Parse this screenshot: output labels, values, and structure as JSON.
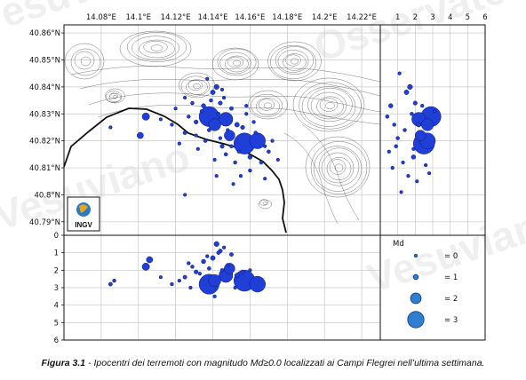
{
  "figure": {
    "caption_bold": "Figura 3.1",
    "caption_text": " - Ipocentri dei terremoti con magnitudo Md≥0.0 localizzati ai Campi Flegrei nell’ultima settimana.",
    "logo_text": "INGV",
    "watermark": [
      "Vesuviano",
      "Osservatorio",
      "INGV"
    ]
  },
  "colors": {
    "event": "#1f3fd6",
    "event_edge": "#0a1a7a",
    "legend_circle": "#2e7fd1",
    "grid": "#c8c8c8",
    "contour": "#333333"
  },
  "chart_data": [
    {
      "type": "scatter",
      "panel": "map",
      "x_ticks": [
        "14.08°E",
        "14.1°E",
        "14.12°E",
        "14.14°E",
        "14.16°E",
        "14.18°E",
        "14.2°E",
        "14.22°E"
      ],
      "y_ticks": [
        "40.86°N",
        "40.85°N",
        "40.84°N",
        "40.83°N",
        "40.82°N",
        "40.81°N",
        "40.8°N",
        "40.79°N"
      ],
      "xlim": [
        14.06,
        14.23
      ],
      "ylim": [
        40.785,
        40.863
      ],
      "points": [
        {
          "lon": 14.138,
          "lat": 40.829,
          "md": 3.0
        },
        {
          "lon": 14.157,
          "lat": 40.819,
          "md": 3.1
        },
        {
          "lon": 14.164,
          "lat": 40.82,
          "md": 2.6
        },
        {
          "lon": 14.147,
          "lat": 40.828,
          "md": 2.4
        },
        {
          "lon": 14.141,
          "lat": 40.826,
          "md": 2.2
        },
        {
          "lon": 14.149,
          "lat": 40.822,
          "md": 2.0
        },
        {
          "lon": 14.104,
          "lat": 40.829,
          "md": 1.5
        },
        {
          "lon": 14.101,
          "lat": 40.822,
          "md": 1.3
        },
        {
          "lon": 14.142,
          "lat": 40.84,
          "md": 1.0
        },
        {
          "lon": 14.14,
          "lat": 40.838,
          "md": 0.9
        },
        {
          "lon": 14.135,
          "lat": 40.833,
          "md": 0.8
        },
        {
          "lon": 14.153,
          "lat": 40.826,
          "md": 0.9
        },
        {
          "lon": 14.16,
          "lat": 40.814,
          "md": 0.8
        },
        {
          "lon": 14.145,
          "lat": 40.818,
          "md": 0.7
        },
        {
          "lon": 14.131,
          "lat": 40.827,
          "md": 0.7
        },
        {
          "lon": 14.125,
          "lat": 40.823,
          "md": 0.6
        },
        {
          "lon": 14.144,
          "lat": 40.834,
          "md": 0.7
        },
        {
          "lon": 14.15,
          "lat": 40.832,
          "md": 0.6
        },
        {
          "lon": 14.156,
          "lat": 40.825,
          "md": 0.7
        },
        {
          "lon": 14.166,
          "lat": 40.812,
          "md": 0.5
        },
        {
          "lon": 14.17,
          "lat": 40.816,
          "md": 0.5
        },
        {
          "lon": 14.16,
          "lat": 40.809,
          "md": 0.4
        },
        {
          "lon": 14.152,
          "lat": 40.812,
          "md": 0.4
        },
        {
          "lon": 14.147,
          "lat": 40.815,
          "md": 0.5
        },
        {
          "lon": 14.136,
          "lat": 40.82,
          "md": 0.4
        },
        {
          "lon": 14.129,
          "lat": 40.834,
          "md": 0.4
        },
        {
          "lon": 14.122,
          "lat": 40.819,
          "md": 0.3
        },
        {
          "lon": 14.127,
          "lat": 40.829,
          "md": 0.4
        },
        {
          "lon": 14.138,
          "lat": 40.824,
          "md": 0.5
        },
        {
          "lon": 14.143,
          "lat": 40.83,
          "md": 0.5
        },
        {
          "lon": 14.15,
          "lat": 40.818,
          "md": 0.4
        },
        {
          "lon": 14.158,
          "lat": 40.83,
          "md": 0.3
        },
        {
          "lon": 14.162,
          "lat": 40.827,
          "md": 0.3
        },
        {
          "lon": 14.172,
          "lat": 40.82,
          "md": 0.3
        },
        {
          "lon": 14.175,
          "lat": 40.813,
          "md": 0.2
        },
        {
          "lon": 14.168,
          "lat": 40.806,
          "md": 0.2
        },
        {
          "lon": 14.155,
          "lat": 40.807,
          "md": 0.3
        },
        {
          "lon": 14.141,
          "lat": 40.813,
          "md": 0.2
        },
        {
          "lon": 14.132,
          "lat": 40.817,
          "md": 0.3
        },
        {
          "lon": 14.118,
          "lat": 40.826,
          "md": 0.3
        },
        {
          "lon": 14.112,
          "lat": 40.828,
          "md": 0.2
        },
        {
          "lon": 14.085,
          "lat": 40.825,
          "md": 0.2
        },
        {
          "lon": 14.125,
          "lat": 40.836,
          "md": 0.2
        },
        {
          "lon": 14.137,
          "lat": 40.843,
          "md": 0.3
        },
        {
          "lon": 14.146,
          "lat": 40.836,
          "md": 0.3
        },
        {
          "lon": 14.158,
          "lat": 40.833,
          "md": 0.2
        },
        {
          "lon": 14.163,
          "lat": 40.823,
          "md": 0.4
        },
        {
          "lon": 14.168,
          "lat": 40.818,
          "md": 0.3
        },
        {
          "lon": 14.144,
          "lat": 40.821,
          "md": 0.3
        },
        {
          "lon": 14.134,
          "lat": 40.831,
          "md": 0.3
        },
        {
          "lon": 14.139,
          "lat": 40.835,
          "md": 0.4
        },
        {
          "lon": 14.148,
          "lat": 40.824,
          "md": 0.3
        },
        {
          "lon": 14.154,
          "lat": 40.816,
          "md": 0.3
        },
        {
          "lon": 14.131,
          "lat": 40.822,
          "md": 0.2
        },
        {
          "lon": 14.145,
          "lat": 40.839,
          "md": 0.2
        },
        {
          "lon": 14.12,
          "lat": 40.832,
          "md": 0.2
        },
        {
          "lon": 14.142,
          "lat": 40.807,
          "md": 0.2
        },
        {
          "lon": 14.125,
          "lat": 40.8,
          "md": 0.2
        },
        {
          "lon": 14.151,
          "lat": 40.804,
          "md": 0.2
        }
      ]
    },
    {
      "type": "scatter",
      "panel": "lat-depth",
      "xlim": [
        0,
        6
      ],
      "x_ticks": [
        "1",
        "2",
        "3",
        "4",
        "5",
        "6"
      ],
      "points": [
        {
          "depth": 2.9,
          "lat": 40.829,
          "md": 3.0
        },
        {
          "depth": 2.5,
          "lat": 40.819,
          "md": 3.1
        },
        {
          "depth": 2.7,
          "lat": 40.82,
          "md": 2.6
        },
        {
          "depth": 2.2,
          "lat": 40.828,
          "md": 2.4
        },
        {
          "depth": 2.7,
          "lat": 40.826,
          "md": 2.2
        },
        {
          "depth": 2.3,
          "lat": 40.822,
          "md": 2.0
        },
        {
          "depth": 1.7,
          "lat": 40.84,
          "md": 1.0
        },
        {
          "depth": 1.5,
          "lat": 40.838,
          "md": 0.9
        },
        {
          "depth": 2.0,
          "lat": 40.834,
          "md": 0.7
        },
        {
          "depth": 0.6,
          "lat": 40.833,
          "md": 0.8
        },
        {
          "depth": 1.9,
          "lat": 40.814,
          "md": 0.8
        },
        {
          "depth": 2.2,
          "lat": 40.826,
          "md": 0.9
        },
        {
          "depth": 1.1,
          "lat": 40.845,
          "md": 0.3
        },
        {
          "depth": 0.8,
          "lat": 40.826,
          "md": 0.4
        },
        {
          "depth": 1.0,
          "lat": 40.821,
          "md": 0.4
        },
        {
          "depth": 0.4,
          "lat": 40.829,
          "md": 0.5
        },
        {
          "depth": 0.9,
          "lat": 40.818,
          "md": 0.4
        },
        {
          "depth": 1.3,
          "lat": 40.812,
          "md": 0.3
        },
        {
          "depth": 1.6,
          "lat": 40.807,
          "md": 0.3
        },
        {
          "depth": 2.1,
          "lat": 40.805,
          "md": 0.2
        },
        {
          "depth": 1.2,
          "lat": 40.801,
          "md": 0.2
        },
        {
          "depth": 0.5,
          "lat": 40.816,
          "md": 0.3
        },
        {
          "depth": 2.6,
          "lat": 40.811,
          "md": 0.3
        },
        {
          "depth": 3.1,
          "lat": 40.831,
          "md": 0.2
        },
        {
          "depth": 1.8,
          "lat": 40.83,
          "md": 0.4
        },
        {
          "depth": 1.4,
          "lat": 40.824,
          "md": 0.4
        },
        {
          "depth": 2.4,
          "lat": 40.833,
          "md": 0.3
        },
        {
          "depth": 0.7,
          "lat": 40.81,
          "md": 0.3
        },
        {
          "depth": 1.9,
          "lat": 40.817,
          "md": 0.3
        },
        {
          "depth": 2.8,
          "lat": 40.808,
          "md": 0.2
        }
      ]
    },
    {
      "type": "scatter",
      "panel": "lon-depth",
      "ylim": [
        0,
        6
      ],
      "y_ticks": [
        "0",
        "1",
        "2",
        "3",
        "4",
        "5",
        "6"
      ],
      "points": [
        {
          "lon": 14.138,
          "depth": 2.8,
          "md": 3.0
        },
        {
          "lon": 14.157,
          "depth": 2.6,
          "md": 3.1
        },
        {
          "lon": 14.164,
          "depth": 2.8,
          "md": 2.6
        },
        {
          "lon": 14.147,
          "depth": 2.3,
          "md": 2.4
        },
        {
          "lon": 14.141,
          "depth": 2.6,
          "md": 2.2
        },
        {
          "lon": 14.149,
          "depth": 1.9,
          "md": 2.0
        },
        {
          "lon": 14.104,
          "depth": 1.8,
          "md": 1.5
        },
        {
          "lon": 14.106,
          "depth": 1.4,
          "md": 1.3
        },
        {
          "lon": 14.142,
          "depth": 0.5,
          "md": 1.0
        },
        {
          "lon": 14.14,
          "depth": 1.3,
          "md": 0.9
        },
        {
          "lon": 14.135,
          "depth": 1.5,
          "md": 0.8
        },
        {
          "lon": 14.153,
          "depth": 2.3,
          "md": 0.9
        },
        {
          "lon": 14.085,
          "depth": 2.8,
          "md": 0.6
        },
        {
          "lon": 14.087,
          "depth": 2.6,
          "md": 0.4
        },
        {
          "lon": 14.131,
          "depth": 2.1,
          "md": 0.7
        },
        {
          "lon": 14.125,
          "depth": 2.4,
          "md": 0.6
        },
        {
          "lon": 14.144,
          "depth": 0.9,
          "md": 0.7
        },
        {
          "lon": 14.15,
          "depth": 1.1,
          "md": 0.6
        },
        {
          "lon": 14.156,
          "depth": 2.1,
          "md": 0.7
        },
        {
          "lon": 14.129,
          "depth": 1.8,
          "md": 0.4
        },
        {
          "lon": 14.122,
          "depth": 2.6,
          "md": 0.3
        },
        {
          "lon": 14.127,
          "depth": 1.6,
          "md": 0.4
        },
        {
          "lon": 14.138,
          "depth": 1.9,
          "md": 0.5
        },
        {
          "lon": 14.143,
          "depth": 1.0,
          "md": 0.5
        },
        {
          "lon": 14.118,
          "depth": 2.8,
          "md": 0.3
        },
        {
          "lon": 14.112,
          "depth": 2.4,
          "md": 0.2
        },
        {
          "lon": 14.16,
          "depth": 2.0,
          "md": 0.3
        },
        {
          "lon": 14.146,
          "depth": 0.7,
          "md": 0.3
        },
        {
          "lon": 14.137,
          "depth": 1.2,
          "md": 0.3
        },
        {
          "lon": 14.133,
          "depth": 2.2,
          "md": 0.3
        },
        {
          "lon": 14.148,
          "depth": 1.7,
          "md": 0.3
        },
        {
          "lon": 14.141,
          "depth": 3.5,
          "md": 0.3
        },
        {
          "lon": 14.152,
          "depth": 3.0,
          "md": 0.2
        },
        {
          "lon": 14.128,
          "depth": 3.0,
          "md": 0.2
        },
        {
          "lon": 14.145,
          "depth": 2.0,
          "md": 0.4
        }
      ]
    }
  ],
  "legend": {
    "title": "Md",
    "entries": [
      {
        "md": 0,
        "label": "= 0"
      },
      {
        "md": 1,
        "label": "= 1"
      },
      {
        "md": 2,
        "label": "= 2"
      },
      {
        "md": 3,
        "label": "= 3"
      }
    ]
  }
}
